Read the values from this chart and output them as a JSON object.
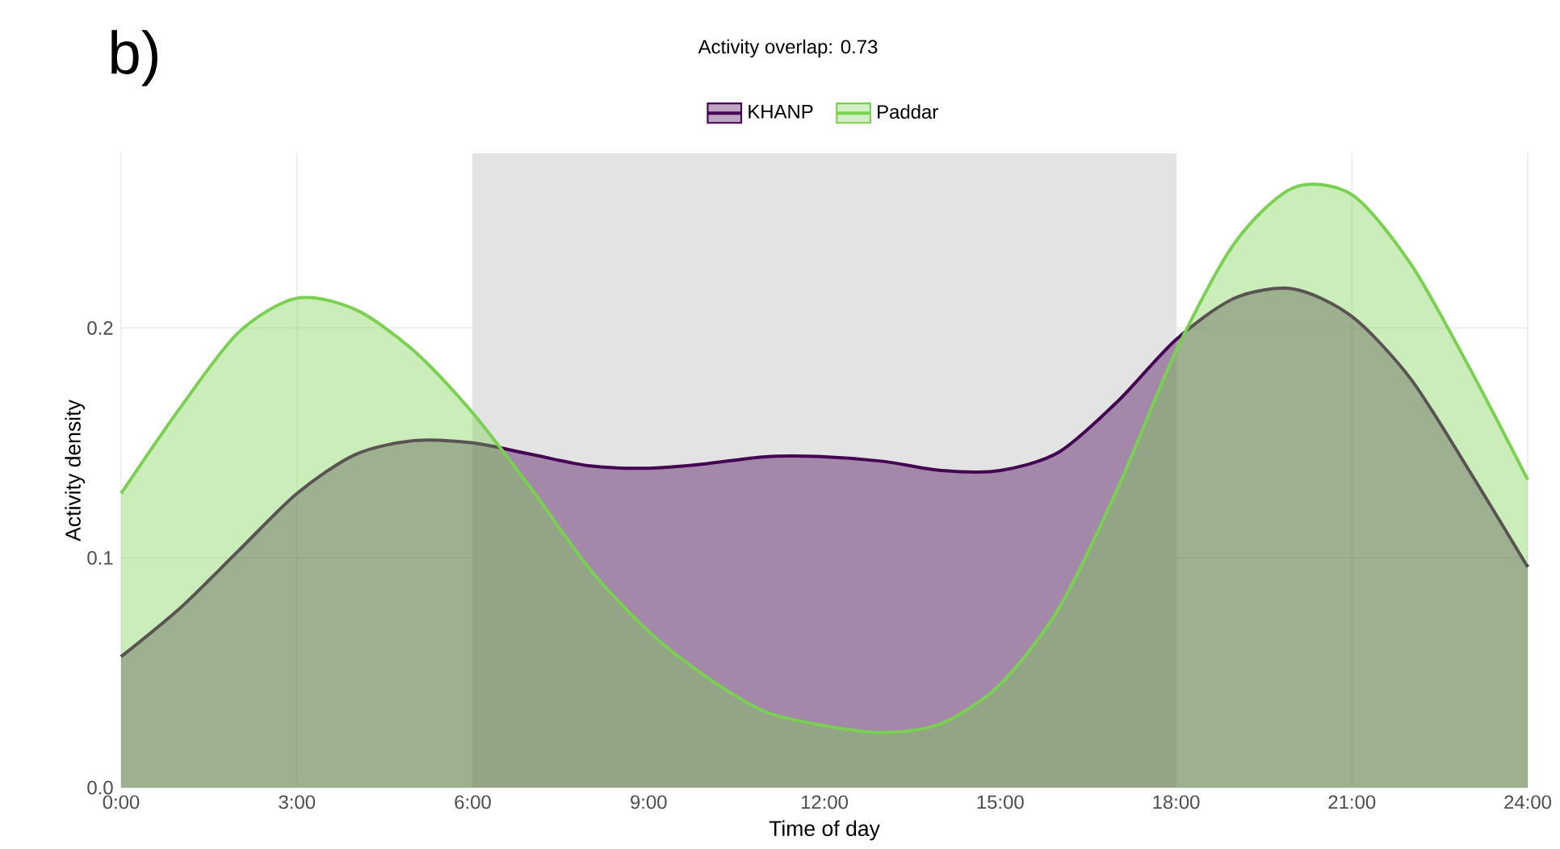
{
  "chart_data": {
    "type": "area",
    "title": "Activity overlap: 0.73",
    "xlabel": "Time of day",
    "ylabel": "Activity density",
    "annotations": [
      "b)"
    ],
    "x": [
      0,
      1,
      2,
      3,
      4,
      5,
      6,
      7,
      8,
      9,
      10,
      11,
      12,
      13,
      14,
      15,
      16,
      17,
      18,
      19,
      20,
      21,
      22,
      23,
      24
    ],
    "series": [
      {
        "name": "KHANP",
        "color": "#440154",
        "values": [
          0.057,
          0.078,
          0.103,
          0.128,
          0.145,
          0.151,
          0.15,
          0.145,
          0.14,
          0.139,
          0.141,
          0.144,
          0.144,
          0.142,
          0.138,
          0.138,
          0.146,
          0.168,
          0.195,
          0.213,
          0.217,
          0.205,
          0.178,
          0.138,
          0.096
        ]
      },
      {
        "name": "Paddar",
        "color": "#7ad151",
        "values": [
          0.128,
          0.165,
          0.198,
          0.213,
          0.208,
          0.19,
          0.163,
          0.13,
          0.095,
          0.068,
          0.048,
          0.033,
          0.027,
          0.024,
          0.028,
          0.045,
          0.078,
          0.13,
          0.19,
          0.237,
          0.261,
          0.258,
          0.228,
          0.183,
          0.134
        ]
      }
    ],
    "bands": [
      {
        "axis": "x",
        "from": 6,
        "to": 18,
        "color": "#e3e3e3"
      }
    ],
    "xlim": [
      0,
      24
    ],
    "ylim": [
      0,
      0.276
    ],
    "xticks": [
      {
        "value": 0,
        "label": "0:00"
      },
      {
        "value": 3,
        "label": "3:00"
      },
      {
        "value": 6,
        "label": "6:00"
      },
      {
        "value": 9,
        "label": "9:00"
      },
      {
        "value": 12,
        "label": "12:00"
      },
      {
        "value": 15,
        "label": "15:00"
      },
      {
        "value": 18,
        "label": "18:00"
      },
      {
        "value": 21,
        "label": "21:00"
      },
      {
        "value": 24,
        "label": "24:00"
      }
    ],
    "yticks": [
      {
        "value": 0,
        "label": "0.0"
      },
      0.1,
      0.2
    ],
    "grid": true,
    "legend": "top",
    "line_style": "solid",
    "marker": "none"
  }
}
